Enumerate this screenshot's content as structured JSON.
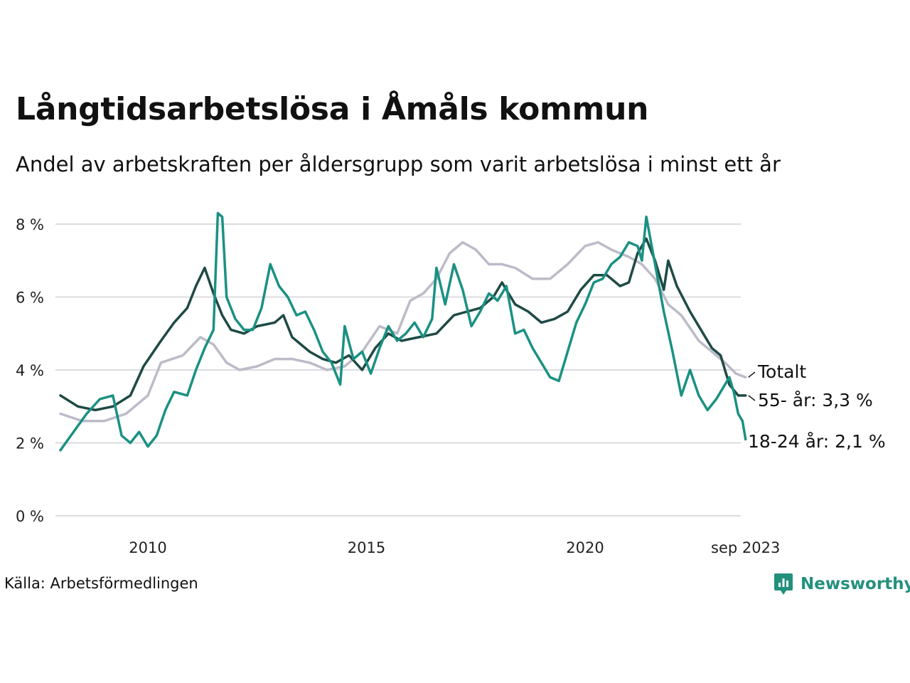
{
  "header": {
    "title": "Långtidsarbetslösa i Åmåls kommun",
    "subtitle": "Andel av arbetskraften per åldersgrupp som varit arbetslösa i minst ett år"
  },
  "footer": {
    "source": "Källa: Arbetsförmedlingen",
    "brand": "Newsworthy"
  },
  "colors": {
    "total": "#bcbbc8",
    "age55": "#1e4a44",
    "age1824": "#1a9182",
    "grid": "#dcdce1",
    "brand": "#23907c"
  },
  "chart_data": {
    "type": "line",
    "title": "Långtidsarbetslösa i Åmåls kommun",
    "xlabel": "",
    "ylabel": "",
    "ylim": [
      0,
      8.5
    ],
    "y_ticks": [
      0,
      2,
      4,
      6,
      8
    ],
    "y_tick_labels": [
      "0 %",
      "2 %",
      "4 %",
      "6 %",
      "8 %"
    ],
    "x_tick_labels": [
      {
        "year": 2010,
        "label": "2010"
      },
      {
        "year": 2015,
        "label": "2015"
      },
      {
        "year": 2020,
        "label": "2020"
      },
      {
        "year": 2023.67,
        "label": "sep 2023"
      }
    ],
    "grid": true,
    "series": [
      {
        "name": "Totalt",
        "label": "Totalt",
        "color": "#bcbbc8",
        "points": [
          [
            2008.0,
            2.8
          ],
          [
            2008.5,
            2.6
          ],
          [
            2009.0,
            2.6
          ],
          [
            2009.5,
            2.8
          ],
          [
            2010.0,
            3.3
          ],
          [
            2010.3,
            4.2
          ],
          [
            2010.8,
            4.4
          ],
          [
            2011.2,
            4.9
          ],
          [
            2011.5,
            4.7
          ],
          [
            2011.8,
            4.2
          ],
          [
            2012.1,
            4.0
          ],
          [
            2012.5,
            4.1
          ],
          [
            2012.9,
            4.3
          ],
          [
            2013.3,
            4.3
          ],
          [
            2013.7,
            4.2
          ],
          [
            2014.1,
            4.0
          ],
          [
            2014.5,
            4.1
          ],
          [
            2014.9,
            4.5
          ],
          [
            2015.3,
            5.2
          ],
          [
            2015.7,
            5.0
          ],
          [
            2016.0,
            5.9
          ],
          [
            2016.3,
            6.1
          ],
          [
            2016.6,
            6.5
          ],
          [
            2016.9,
            7.2
          ],
          [
            2017.2,
            7.5
          ],
          [
            2017.5,
            7.3
          ],
          [
            2017.8,
            6.9
          ],
          [
            2018.1,
            6.9
          ],
          [
            2018.4,
            6.8
          ],
          [
            2018.8,
            6.5
          ],
          [
            2019.2,
            6.5
          ],
          [
            2019.6,
            6.9
          ],
          [
            2020.0,
            7.4
          ],
          [
            2020.3,
            7.5
          ],
          [
            2020.6,
            7.3
          ],
          [
            2021.0,
            7.1
          ],
          [
            2021.3,
            6.9
          ],
          [
            2021.6,
            6.5
          ],
          [
            2021.9,
            5.8
          ],
          [
            2022.2,
            5.5
          ],
          [
            2022.6,
            4.8
          ],
          [
            2022.9,
            4.5
          ],
          [
            2023.2,
            4.2
          ],
          [
            2023.45,
            3.9
          ],
          [
            2023.67,
            3.8
          ]
        ]
      },
      {
        "name": "55- år",
        "label": "55- år: 3,3 %",
        "color": "#1e4a44",
        "points": [
          [
            2008.0,
            3.3
          ],
          [
            2008.4,
            3.0
          ],
          [
            2008.8,
            2.9
          ],
          [
            2009.2,
            3.0
          ],
          [
            2009.6,
            3.3
          ],
          [
            2009.9,
            4.1
          ],
          [
            2010.3,
            4.8
          ],
          [
            2010.6,
            5.3
          ],
          [
            2010.9,
            5.7
          ],
          [
            2011.1,
            6.3
          ],
          [
            2011.3,
            6.8
          ],
          [
            2011.5,
            6.1
          ],
          [
            2011.7,
            5.5
          ],
          [
            2011.9,
            5.1
          ],
          [
            2012.2,
            5.0
          ],
          [
            2012.5,
            5.2
          ],
          [
            2012.9,
            5.3
          ],
          [
            2013.1,
            5.5
          ],
          [
            2013.3,
            4.9
          ],
          [
            2013.7,
            4.5
          ],
          [
            2014.0,
            4.3
          ],
          [
            2014.3,
            4.2
          ],
          [
            2014.6,
            4.4
          ],
          [
            2014.9,
            4.0
          ],
          [
            2015.2,
            4.6
          ],
          [
            2015.5,
            5.0
          ],
          [
            2015.8,
            4.8
          ],
          [
            2016.2,
            4.9
          ],
          [
            2016.6,
            5.0
          ],
          [
            2017.0,
            5.5
          ],
          [
            2017.3,
            5.6
          ],
          [
            2017.6,
            5.7
          ],
          [
            2017.9,
            6.0
          ],
          [
            2018.1,
            6.4
          ],
          [
            2018.4,
            5.8
          ],
          [
            2018.7,
            5.6
          ],
          [
            2019.0,
            5.3
          ],
          [
            2019.3,
            5.4
          ],
          [
            2019.6,
            5.6
          ],
          [
            2019.9,
            6.2
          ],
          [
            2020.2,
            6.6
          ],
          [
            2020.5,
            6.6
          ],
          [
            2020.8,
            6.3
          ],
          [
            2021.0,
            6.4
          ],
          [
            2021.2,
            7.2
          ],
          [
            2021.4,
            7.6
          ],
          [
            2021.6,
            7.0
          ],
          [
            2021.8,
            6.2
          ],
          [
            2021.9,
            7.0
          ],
          [
            2022.1,
            6.3
          ],
          [
            2022.4,
            5.6
          ],
          [
            2022.7,
            5.0
          ],
          [
            2022.9,
            4.6
          ],
          [
            2023.1,
            4.4
          ],
          [
            2023.3,
            3.6
          ],
          [
            2023.5,
            3.3
          ],
          [
            2023.67,
            3.3
          ]
        ]
      },
      {
        "name": "18-24 år",
        "label": "18-24 år: 2,1 %",
        "color": "#1a9182",
        "points": [
          [
            2008.0,
            1.8
          ],
          [
            2008.3,
            2.3
          ],
          [
            2008.6,
            2.8
          ],
          [
            2008.9,
            3.2
          ],
          [
            2009.2,
            3.3
          ],
          [
            2009.4,
            2.2
          ],
          [
            2009.6,
            2.0
          ],
          [
            2009.8,
            2.3
          ],
          [
            2010.0,
            1.9
          ],
          [
            2010.2,
            2.2
          ],
          [
            2010.4,
            2.9
          ],
          [
            2010.6,
            3.4
          ],
          [
            2010.9,
            3.3
          ],
          [
            2011.1,
            4.0
          ],
          [
            2011.3,
            4.6
          ],
          [
            2011.5,
            5.1
          ],
          [
            2011.6,
            8.3
          ],
          [
            2011.7,
            8.2
          ],
          [
            2011.8,
            6.0
          ],
          [
            2012.0,
            5.4
          ],
          [
            2012.2,
            5.1
          ],
          [
            2012.4,
            5.1
          ],
          [
            2012.6,
            5.7
          ],
          [
            2012.8,
            6.9
          ],
          [
            2013.0,
            6.3
          ],
          [
            2013.2,
            6.0
          ],
          [
            2013.4,
            5.5
          ],
          [
            2013.6,
            5.6
          ],
          [
            2013.8,
            5.1
          ],
          [
            2014.0,
            4.5
          ],
          [
            2014.2,
            4.2
          ],
          [
            2014.4,
            3.6
          ],
          [
            2014.5,
            5.2
          ],
          [
            2014.7,
            4.3
          ],
          [
            2014.9,
            4.5
          ],
          [
            2015.1,
            3.9
          ],
          [
            2015.3,
            4.6
          ],
          [
            2015.5,
            5.2
          ],
          [
            2015.7,
            4.8
          ],
          [
            2015.9,
            5.0
          ],
          [
            2016.1,
            5.3
          ],
          [
            2016.3,
            4.9
          ],
          [
            2016.5,
            5.4
          ],
          [
            2016.6,
            6.8
          ],
          [
            2016.8,
            5.8
          ],
          [
            2017.0,
            6.9
          ],
          [
            2017.2,
            6.2
          ],
          [
            2017.4,
            5.2
          ],
          [
            2017.6,
            5.6
          ],
          [
            2017.8,
            6.1
          ],
          [
            2018.0,
            5.9
          ],
          [
            2018.2,
            6.3
          ],
          [
            2018.4,
            5.0
          ],
          [
            2018.6,
            5.1
          ],
          [
            2018.8,
            4.6
          ],
          [
            2019.0,
            4.2
          ],
          [
            2019.2,
            3.8
          ],
          [
            2019.4,
            3.7
          ],
          [
            2019.6,
            4.5
          ],
          [
            2019.8,
            5.3
          ],
          [
            2020.0,
            5.8
          ],
          [
            2020.2,
            6.4
          ],
          [
            2020.4,
            6.5
          ],
          [
            2020.6,
            6.9
          ],
          [
            2020.8,
            7.1
          ],
          [
            2021.0,
            7.5
          ],
          [
            2021.2,
            7.4
          ],
          [
            2021.3,
            7.0
          ],
          [
            2021.4,
            8.2
          ],
          [
            2021.6,
            6.9
          ],
          [
            2021.8,
            5.6
          ],
          [
            2022.0,
            4.5
          ],
          [
            2022.2,
            3.3
          ],
          [
            2022.4,
            4.0
          ],
          [
            2022.6,
            3.3
          ],
          [
            2022.8,
            2.9
          ],
          [
            2023.0,
            3.2
          ],
          [
            2023.2,
            3.6
          ],
          [
            2023.3,
            3.8
          ],
          [
            2023.4,
            3.4
          ],
          [
            2023.5,
            2.8
          ],
          [
            2023.6,
            2.6
          ],
          [
            2023.67,
            2.1
          ]
        ]
      }
    ]
  }
}
